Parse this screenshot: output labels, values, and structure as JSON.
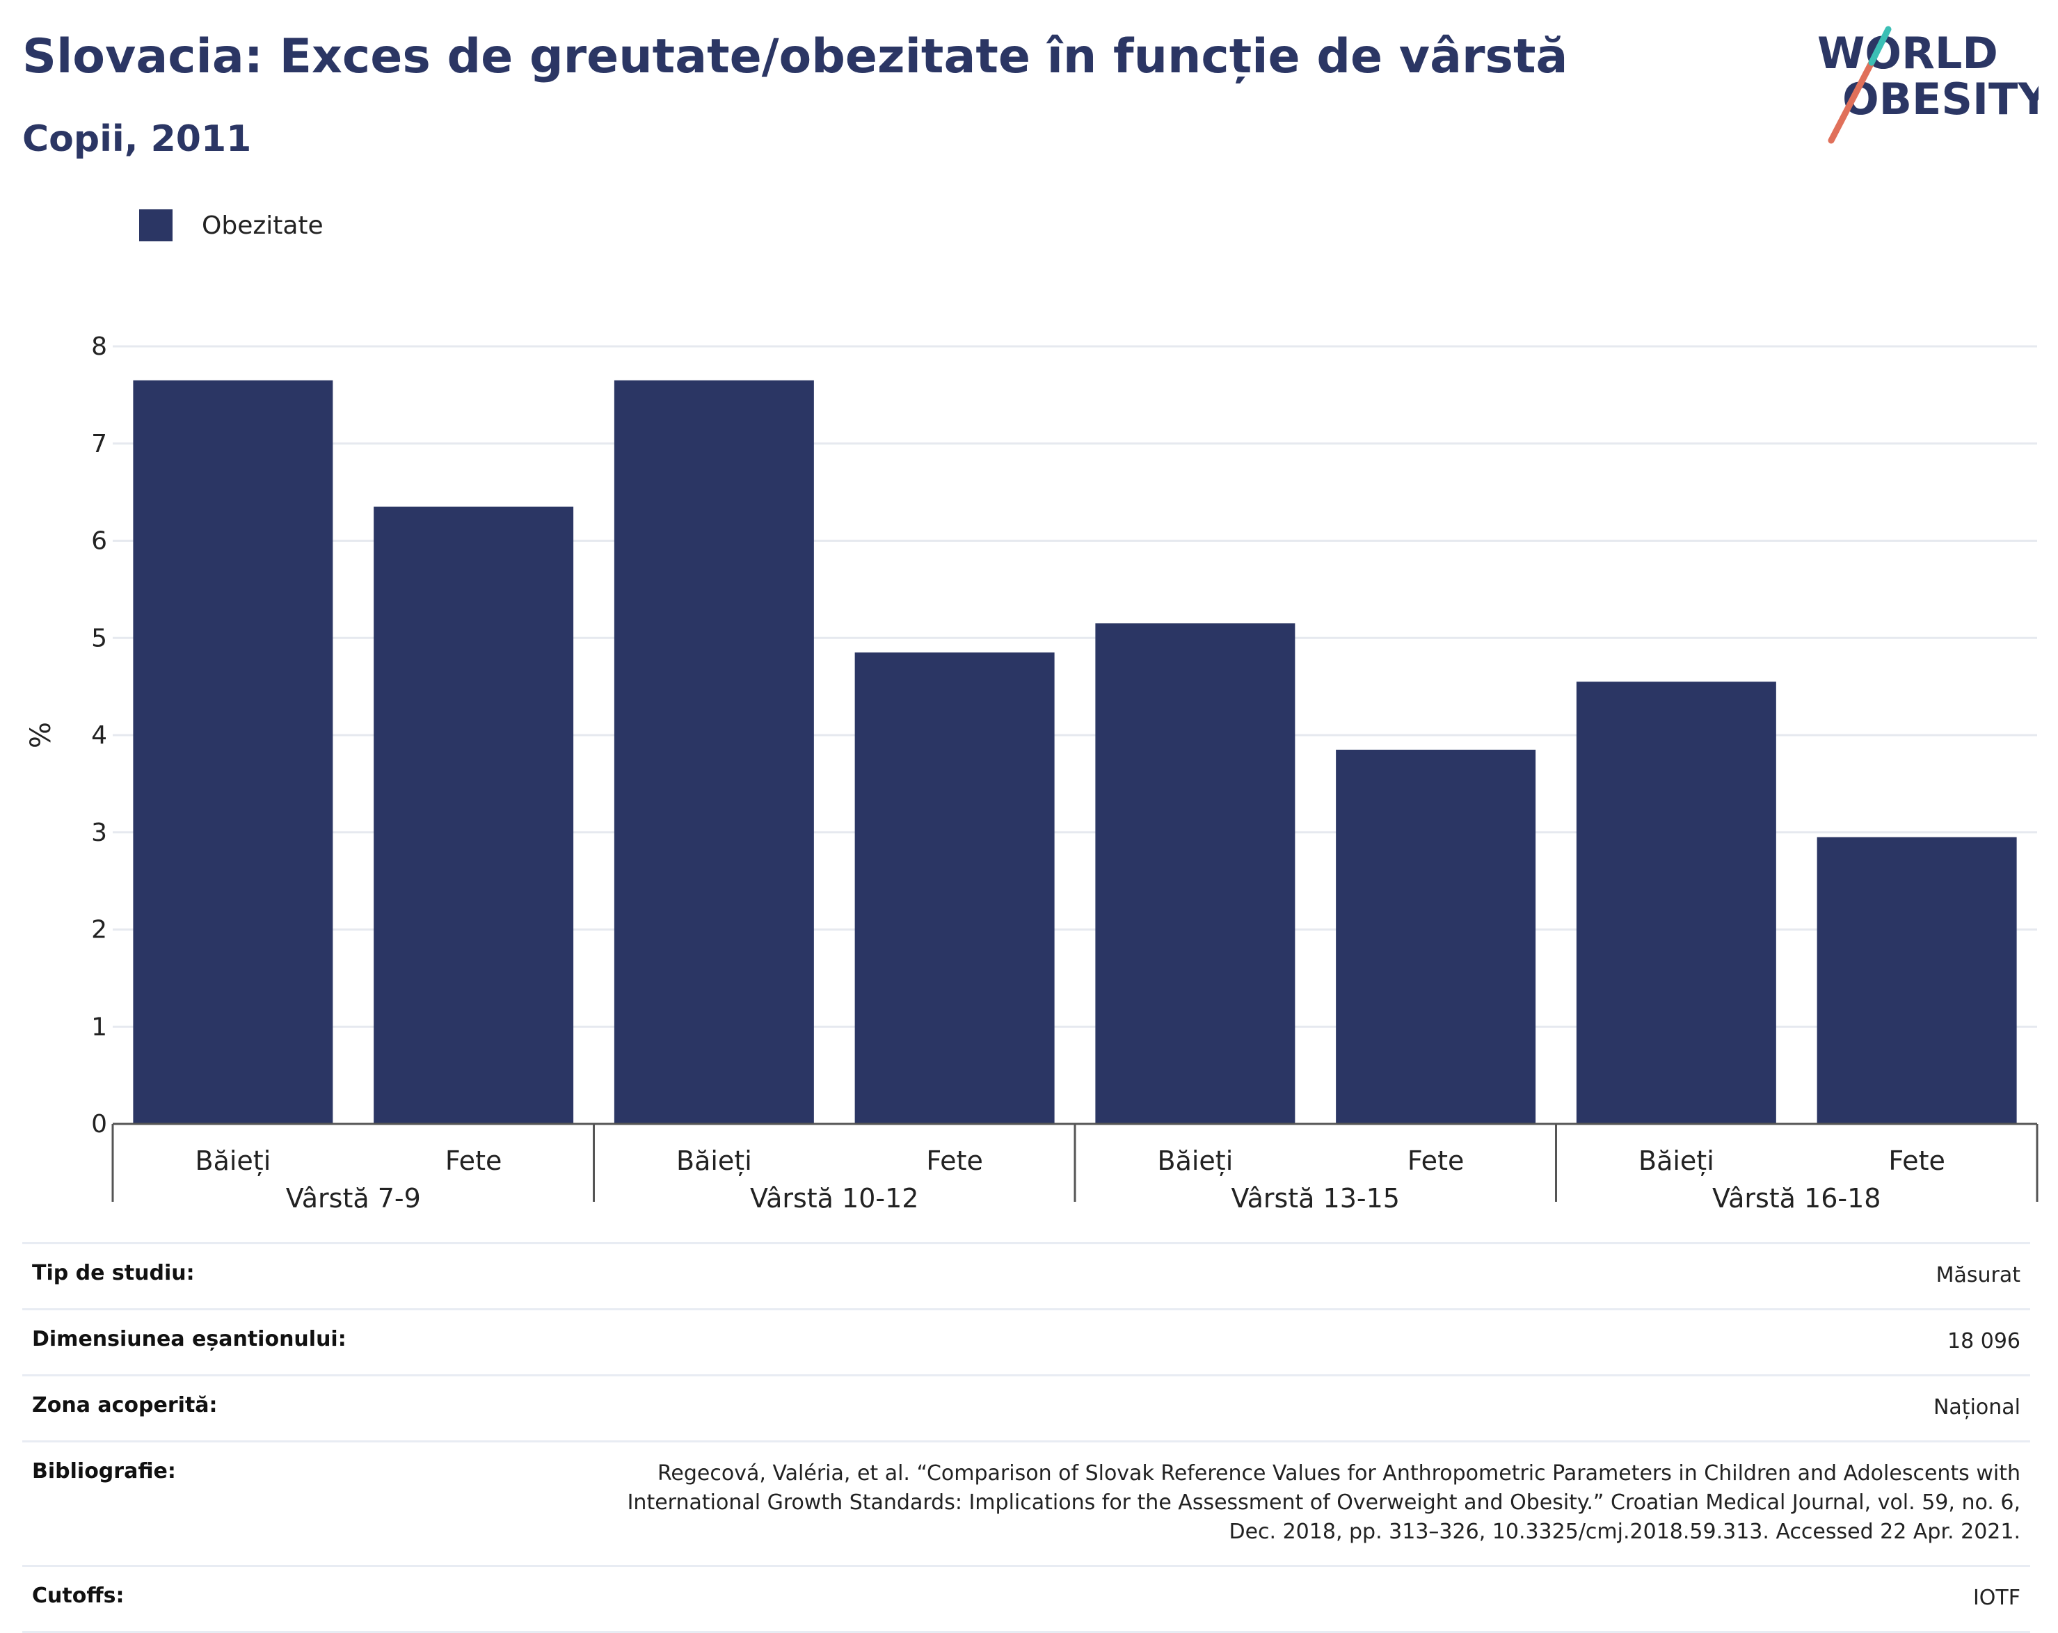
{
  "title": "Slovacia: Exces de greutate/obezitate în funcție de vârstă",
  "subtitle": "Copii, 2011",
  "logo": {
    "line1": "WORLD",
    "line2": "OBESITY",
    "text_color": "#2b3664",
    "slash_colors": [
      "#e0705a",
      "#3bbfb5"
    ]
  },
  "colors": {
    "bar": "#2b3664",
    "title": "#2b3664",
    "grid": "#e6e9ef",
    "axis": "#555555"
  },
  "chart_data": {
    "type": "bar",
    "title": "",
    "ylabel": "%",
    "ylim": [
      0,
      8
    ],
    "yticks": [
      0,
      1,
      2,
      3,
      4,
      5,
      6,
      7,
      8
    ],
    "grid": true,
    "legend_position": "top-left",
    "groups": [
      "Vârstă 7-9",
      "Vârstă 10-12",
      "Vârstă 13-15",
      "Vârstă 16-18"
    ],
    "subcategories": [
      "Băieți",
      "Fete"
    ],
    "series": [
      {
        "name": "Obezitate",
        "color": "#2b3664",
        "values": [
          7.65,
          6.35,
          7.65,
          4.85,
          5.15,
          3.85,
          4.55,
          2.95
        ]
      }
    ]
  },
  "info": [
    {
      "key": "Tip de studiu:",
      "value": "Măsurat"
    },
    {
      "key": "Dimensiunea eșantionului:",
      "value": "18 096"
    },
    {
      "key": "Zona acoperită:",
      "value": "Național"
    },
    {
      "key": "Bibliografie:",
      "value": "Regecová, Valéria, et al. “Comparison of Slovak Reference Values for Anthropometric Parameters in Children and Adolescents with\nInternational Growth Standards: Implications for the Assessment of Overweight and Obesity.” Croatian Medical Journal, vol. 59, no. 6,\nDec. 2018, pp. 313–326, 10.3325/cmj.2018.59.313. Accessed 22 Apr. 2021."
    },
    {
      "key": "Cutoffs:",
      "value": "IOTF"
    }
  ]
}
